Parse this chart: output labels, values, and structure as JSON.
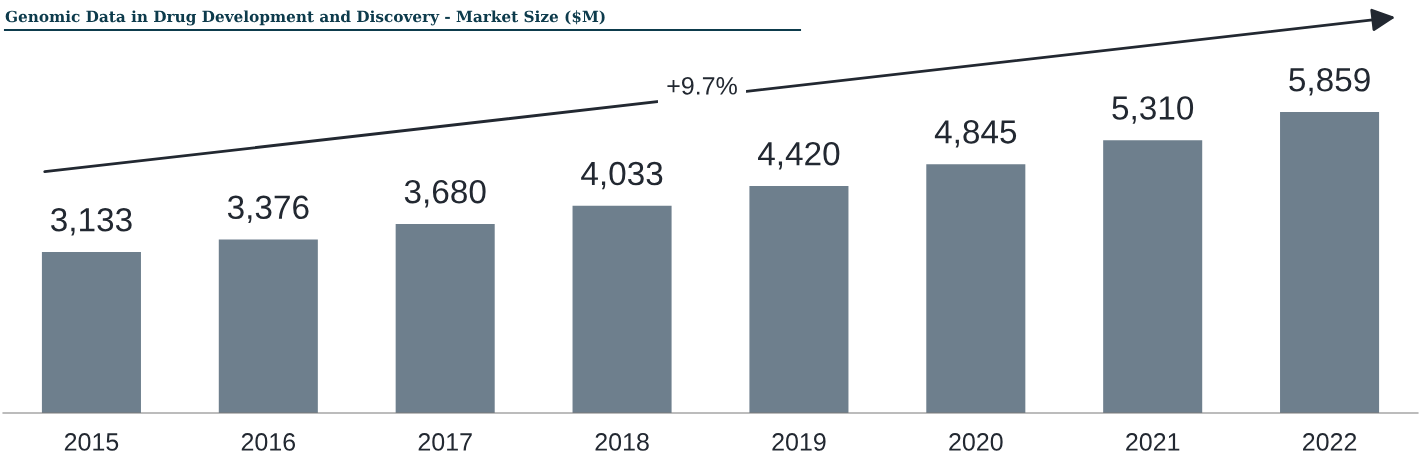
{
  "chart_data": {
    "type": "bar",
    "title": "Genomic Data in Drug Development and Discovery - Market Size ($M)",
    "categories": [
      "2015",
      "2016",
      "2017",
      "2018",
      "2019",
      "2020",
      "2021",
      "2022"
    ],
    "values": [
      3133,
      3376,
      3680,
      4033,
      4420,
      4845,
      5310,
      5859
    ],
    "value_labels": [
      "3,133",
      "3,376",
      "3,680",
      "4,033",
      "4,420",
      "4,845",
      "5,310",
      "5,859"
    ],
    "color": "#6e7f8d",
    "grid": false,
    "legend": false,
    "annotations": [
      "+9.7%"
    ]
  }
}
